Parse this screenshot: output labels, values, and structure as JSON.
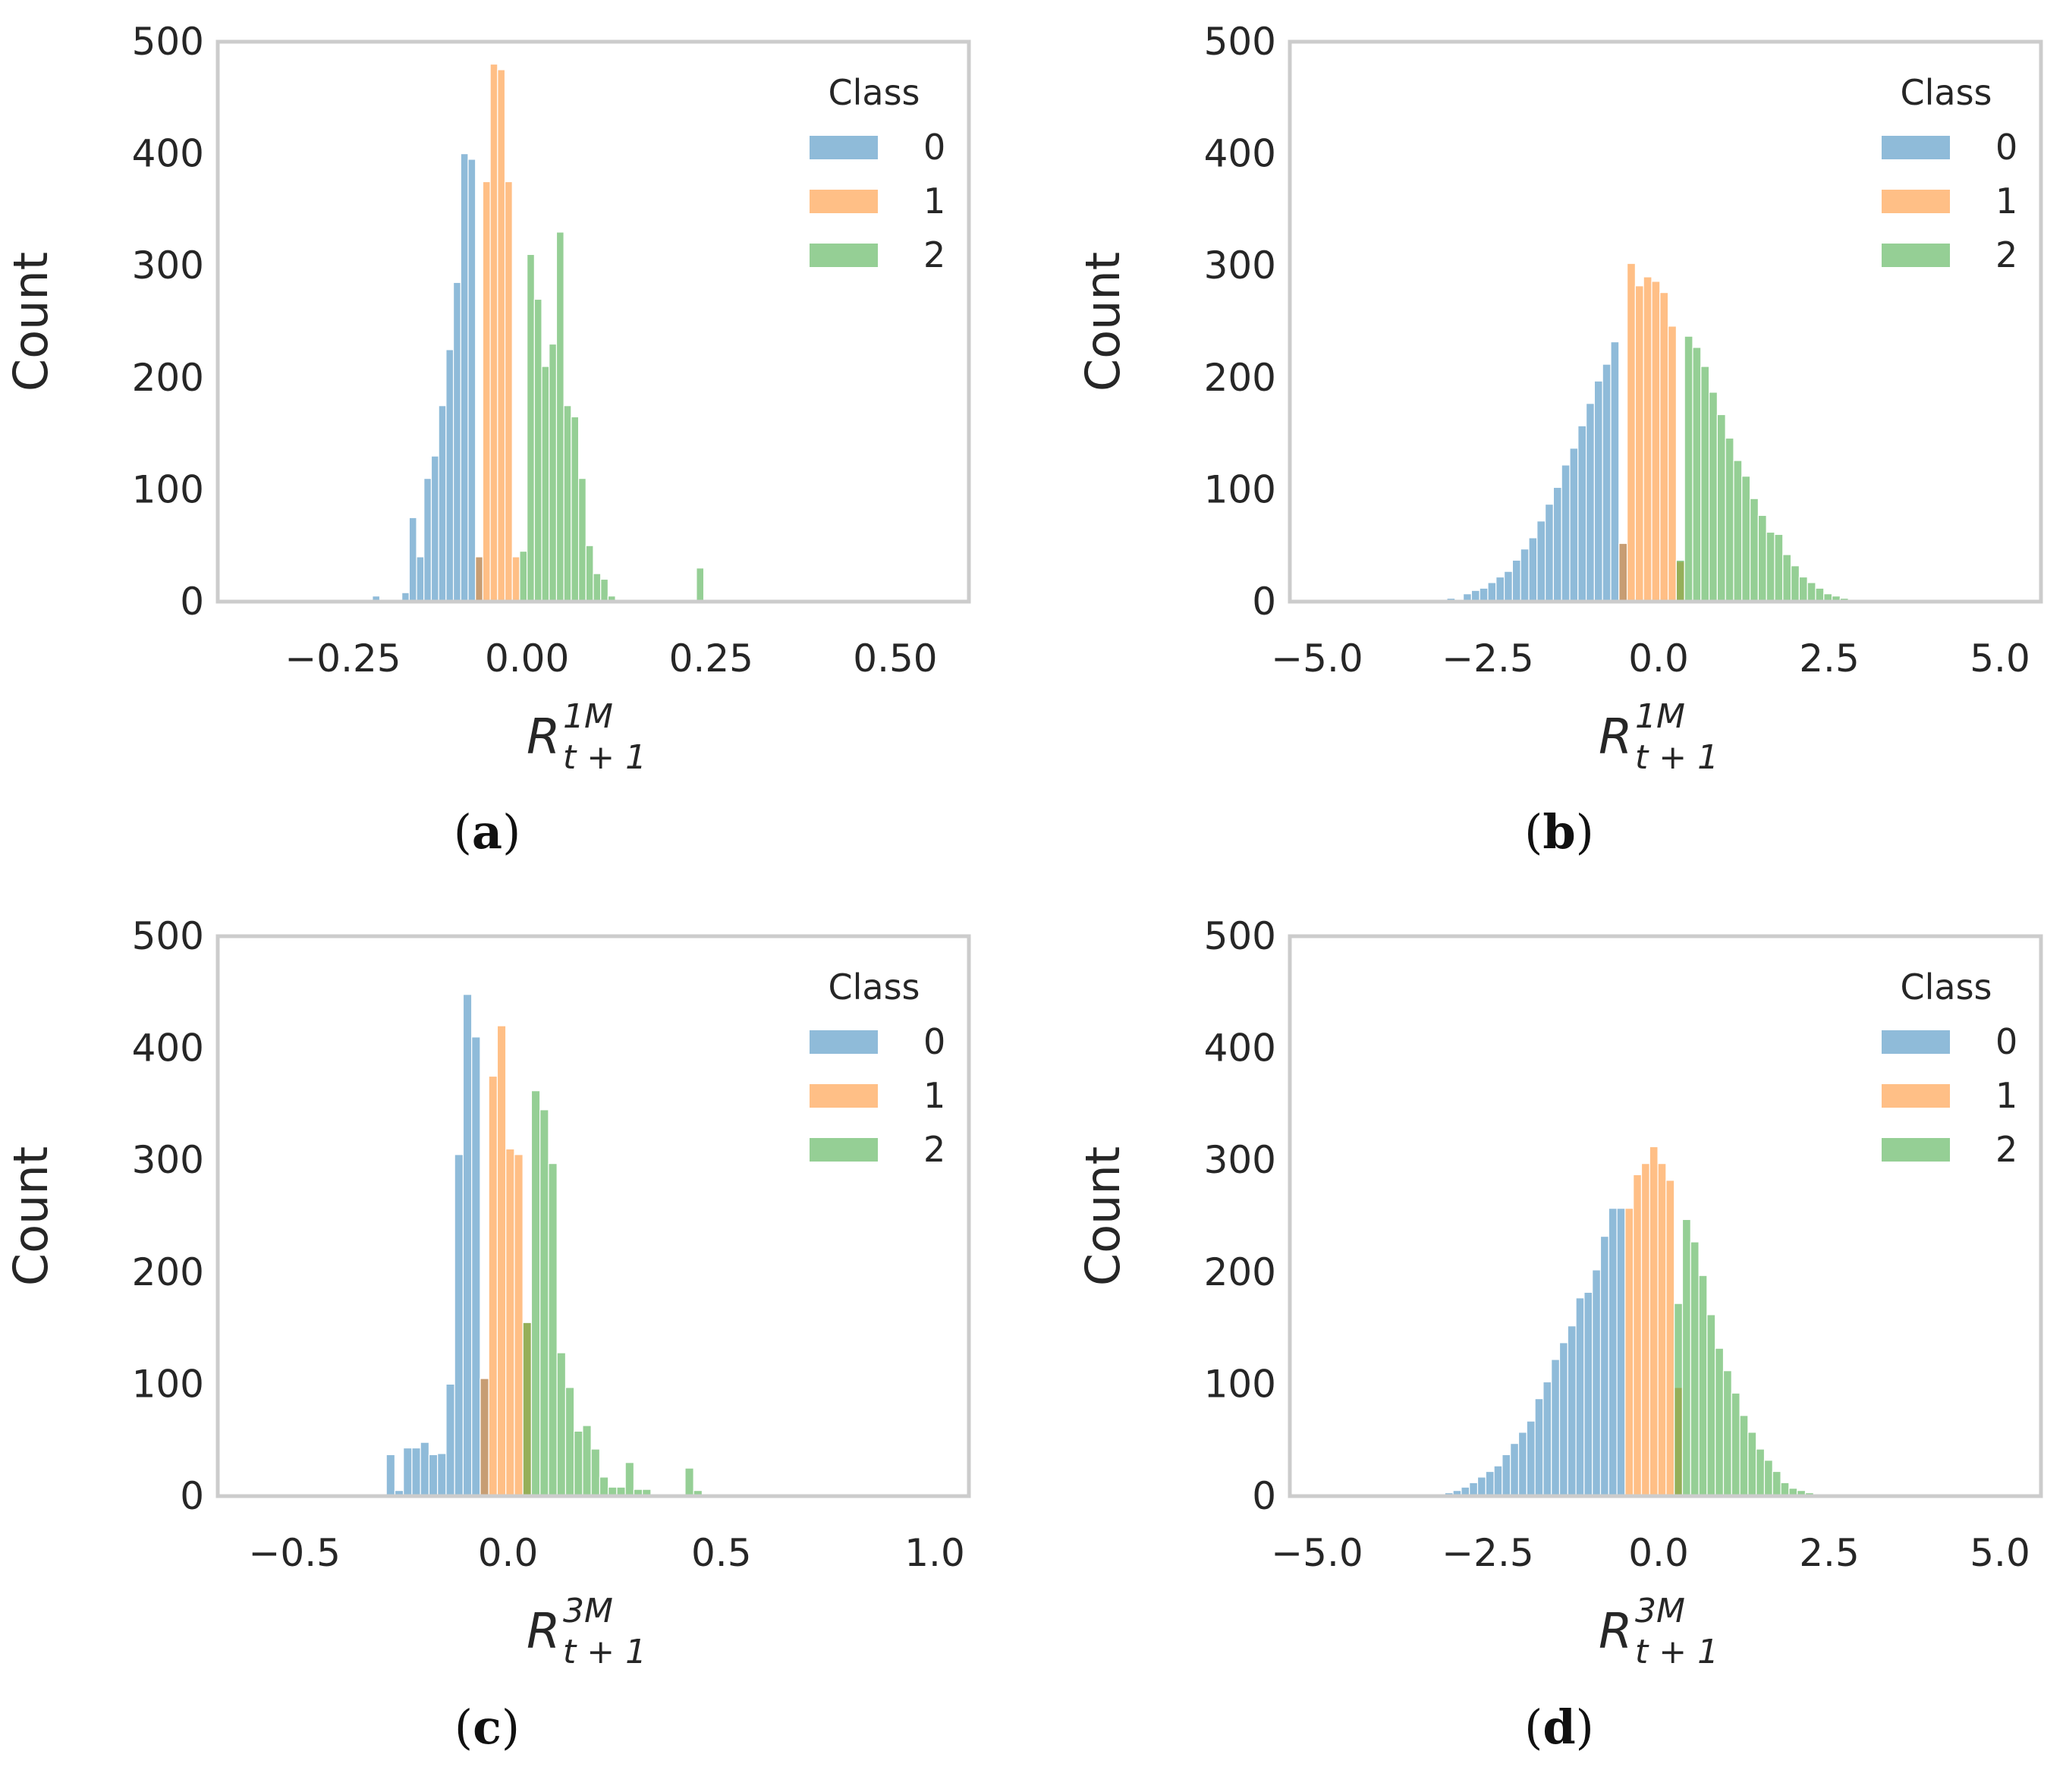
{
  "legend": {
    "title": "Class",
    "entries": [
      {
        "label": "0",
        "color": "#1f77b4"
      },
      {
        "label": "1",
        "color": "#ff7f0e"
      },
      {
        "label": "2",
        "color": "#2ca02c"
      }
    ],
    "placement": "top-right"
  },
  "chart_data": [
    {
      "id": "a",
      "type": "histogram",
      "panel_label": "a",
      "title": "",
      "ylabel": "Count",
      "xlabel": {
        "base": "R",
        "sup": "1M",
        "sub": "t + 1"
      },
      "xlim": [
        -0.42,
        0.6
      ],
      "ylim": [
        0,
        500
      ],
      "xticks": [
        -0.25,
        0.0,
        0.25,
        0.5
      ],
      "xtick_labels": [
        "−0.25",
        "0.00",
        "0.25",
        "0.50"
      ],
      "yticks": [
        0,
        100,
        200,
        300,
        400,
        500
      ],
      "ytick_labels": [
        "0",
        "100",
        "200",
        "300",
        "400",
        "500"
      ],
      "bin_start": -0.21,
      "bin_width": 0.01,
      "grid": false,
      "series": [
        {
          "name": "0",
          "values": [
            5,
            0,
            0,
            2,
            8,
            75,
            40,
            110,
            130,
            175,
            225,
            285,
            400,
            395,
            40
          ]
        },
        {
          "name": "1",
          "values": [
            0,
            0,
            0,
            0,
            0,
            0,
            0,
            0,
            0,
            0,
            0,
            0,
            0,
            0,
            40,
            375,
            480,
            475,
            375,
            40
          ]
        },
        {
          "name": "2",
          "values": [
            0,
            0,
            0,
            0,
            0,
            0,
            0,
            0,
            0,
            0,
            0,
            0,
            0,
            0,
            0,
            0,
            0,
            0,
            0,
            0,
            45,
            310,
            270,
            210,
            230,
            330,
            175,
            165,
            110,
            50,
            25,
            20,
            5,
            0,
            0,
            0,
            0,
            0,
            0,
            0,
            0,
            0,
            0,
            0,
            30,
            0,
            0,
            0,
            0,
            0
          ]
        }
      ]
    },
    {
      "id": "b",
      "type": "histogram",
      "panel_label": "b",
      "title": "",
      "ylabel": "Count",
      "xlabel": {
        "base": "R",
        "sup": "1M",
        "sub": "t + 1"
      },
      "xlim": [
        -5.4,
        5.6
      ],
      "ylim": [
        0,
        500
      ],
      "xticks": [
        -5.0,
        -2.5,
        0.0,
        2.5,
        5.0
      ],
      "xtick_labels": [
        "−5.0",
        "−2.5",
        "0.0",
        "2.5",
        "5.0"
      ],
      "yticks": [
        0,
        100,
        200,
        300,
        400,
        500
      ],
      "ytick_labels": [
        "0",
        "100",
        "200",
        "300",
        "400",
        "500"
      ],
      "bin_start": -3.1,
      "bin_width": 0.12,
      "grid": false,
      "series": [
        {
          "name": "0",
          "values": [
            3,
            0,
            7,
            10,
            12,
            17,
            22,
            27,
            37,
            47,
            57,
            72,
            87,
            102,
            122,
            137,
            157,
            177,
            197,
            212,
            232,
            52
          ]
        },
        {
          "name": "1",
          "values": [
            0,
            0,
            0,
            0,
            0,
            0,
            0,
            0,
            0,
            0,
            0,
            0,
            0,
            0,
            0,
            0,
            0,
            0,
            0,
            0,
            0,
            52,
            302,
            282,
            290,
            286,
            276,
            246,
            36
          ]
        },
        {
          "name": "2",
          "values": [
            0,
            0,
            0,
            0,
            0,
            0,
            0,
            0,
            0,
            0,
            0,
            0,
            0,
            0,
            0,
            0,
            0,
            0,
            0,
            0,
            0,
            0,
            0,
            0,
            0,
            0,
            0,
            0,
            37,
            237,
            227,
            210,
            187,
            167,
            146,
            126,
            112,
            92,
            77,
            62,
            60,
            42,
            32,
            22,
            17,
            12,
            7,
            5,
            3,
            2
          ]
        }
      ]
    },
    {
      "id": "c",
      "type": "histogram",
      "panel_label": "c",
      "title": "",
      "ylabel": "Count",
      "xlabel": {
        "base": "R",
        "sup": "3M",
        "sub": "t + 1"
      },
      "xlim": [
        -0.68,
        1.08
      ],
      "ylim": [
        0,
        500
      ],
      "xticks": [
        -0.5,
        0.0,
        0.5,
        1.0
      ],
      "xtick_labels": [
        "−0.5",
        "0.0",
        "0.5",
        "1.0"
      ],
      "yticks": [
        0,
        100,
        200,
        300,
        400,
        500
      ],
      "ytick_labels": [
        "0",
        "100",
        "200",
        "300",
        "400",
        "500"
      ],
      "bin_start": -0.285,
      "bin_width": 0.02,
      "grid": false,
      "series": [
        {
          "name": "0",
          "values": [
            37,
            5,
            43,
            43,
            48,
            37,
            38,
            100,
            305,
            448,
            410,
            105
          ]
        },
        {
          "name": "1",
          "values": [
            0,
            0,
            0,
            0,
            0,
            0,
            0,
            0,
            0,
            0,
            0,
            105,
            375,
            420,
            310,
            305,
            155
          ]
        },
        {
          "name": "2",
          "values": [
            0,
            0,
            0,
            0,
            0,
            0,
            0,
            0,
            0,
            0,
            0,
            0,
            0,
            0,
            0,
            0,
            155,
            362,
            345,
            297,
            128,
            97,
            58,
            63,
            42,
            17,
            8,
            8,
            30,
            6,
            6,
            0,
            0,
            0,
            0,
            25,
            5,
            0,
            0,
            0,
            0
          ]
        }
      ]
    },
    {
      "id": "d",
      "type": "histogram",
      "panel_label": "d",
      "title": "",
      "ylabel": "Count",
      "xlabel": {
        "base": "R",
        "sup": "3M",
        "sub": "t + 1"
      },
      "xlim": [
        -5.4,
        5.6
      ],
      "ylim": [
        0,
        500
      ],
      "xticks": [
        -5.0,
        -2.5,
        0.0,
        2.5,
        5.0
      ],
      "xtick_labels": [
        "−5.0",
        "−2.5",
        "0.0",
        "2.5",
        "5.0"
      ],
      "yticks": [
        0,
        100,
        200,
        300,
        400,
        500
      ],
      "ytick_labels": [
        "0",
        "100",
        "200",
        "300",
        "400",
        "500"
      ],
      "bin_start": -3.25,
      "bin_width": 0.12,
      "grid": false,
      "series": [
        {
          "name": "0",
          "values": [
            2,
            3,
            5,
            8,
            12,
            17,
            22,
            27,
            37,
            47,
            57,
            67,
            87,
            102,
            122,
            137,
            152,
            177,
            182,
            202,
            232,
            257,
            257
          ]
        },
        {
          "name": "1",
          "values": [
            0,
            0,
            0,
            0,
            0,
            0,
            0,
            0,
            0,
            0,
            0,
            0,
            0,
            0,
            0,
            0,
            0,
            0,
            0,
            0,
            0,
            0,
            0,
            257,
            287,
            297,
            312,
            297,
            282,
            97
          ]
        },
        {
          "name": "2",
          "values": [
            0,
            0,
            0,
            0,
            0,
            0,
            0,
            0,
            0,
            0,
            0,
            0,
            0,
            0,
            0,
            0,
            0,
            0,
            0,
            0,
            0,
            0,
            0,
            0,
            0,
            0,
            0,
            0,
            0,
            172,
            247,
            227,
            197,
            162,
            132,
            112,
            92,
            72,
            57,
            42,
            32,
            22,
            12,
            7,
            5,
            3
          ]
        }
      ]
    }
  ]
}
